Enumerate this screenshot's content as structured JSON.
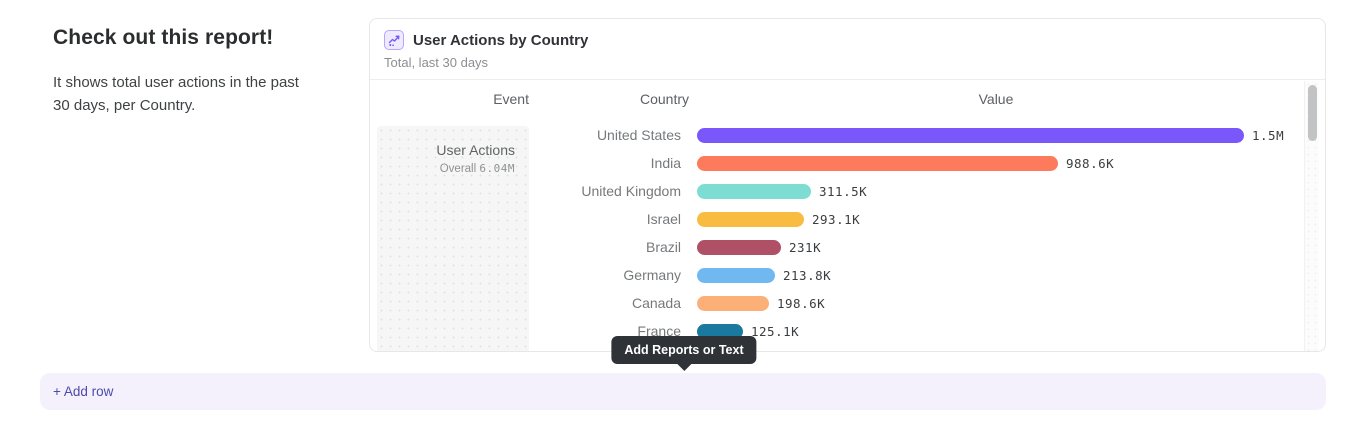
{
  "intro": {
    "heading": "Check out this report!",
    "description": "It shows total user actions in the past 30 days, per Country."
  },
  "card": {
    "title": "User Actions by Country",
    "subtitle": "Total, last 30 days",
    "icon": "line-chart-icon",
    "accent_color": "#7a57fb"
  },
  "chart_data": {
    "type": "bar",
    "orientation": "horizontal",
    "title": "User Actions by Country",
    "subtitle": "Total, last 30 days",
    "columns": [
      "Event",
      "Country",
      "Value"
    ],
    "event": {
      "name": "User Actions",
      "overall_label": "Overall",
      "overall_value": "6.04M"
    },
    "categories": [
      "United States",
      "India",
      "United Kingdom",
      "Israel",
      "Brazil",
      "Germany",
      "Canada",
      "France"
    ],
    "values": [
      1500000,
      988600,
      311500,
      293100,
      231000,
      213800,
      198600,
      125100
    ],
    "value_labels": [
      "1.5M",
      "988.6K",
      "311.5K",
      "293.1K",
      "231K",
      "213.8K",
      "198.6K",
      "125.1K"
    ],
    "bar_colors": [
      "#7a57fb",
      "#fd7a5c",
      "#7eddd2",
      "#f8bc41",
      "#b05067",
      "#70b8f0",
      "#fcb077",
      "#19799e"
    ],
    "xmax": 1500000,
    "xlabel": "Value",
    "ylabel": "Country",
    "grid": false,
    "legend": false
  },
  "tooltip": {
    "label": "Add Reports or Text",
    "bg": "#2f3337"
  },
  "add_row": {
    "label": "+ Add row"
  }
}
